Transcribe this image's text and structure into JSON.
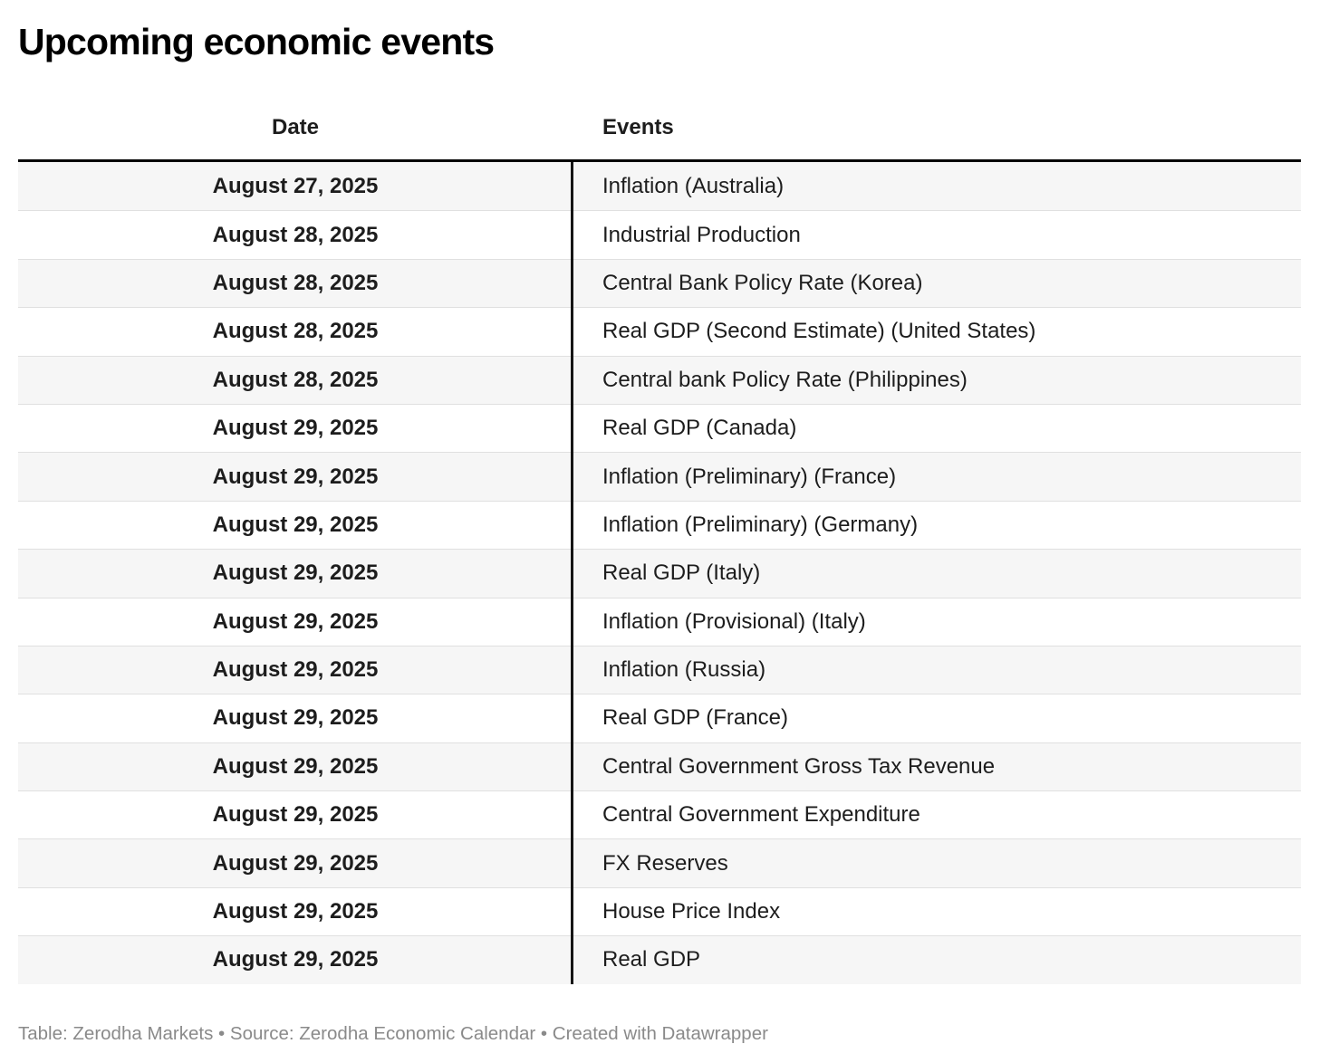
{
  "title": "Upcoming economic events",
  "table": {
    "columns": [
      {
        "label": "Date"
      },
      {
        "label": "Events"
      }
    ],
    "rows": [
      {
        "date": "August 27, 2025",
        "event": "Inflation (Australia)"
      },
      {
        "date": "August 28, 2025",
        "event": "Industrial Production"
      },
      {
        "date": "August 28, 2025",
        "event": "Central Bank Policy Rate (Korea)"
      },
      {
        "date": "August 28, 2025",
        "event": "Real GDP (Second Estimate) (United States)"
      },
      {
        "date": "August 28, 2025",
        "event": "Central bank Policy Rate (Philippines)"
      },
      {
        "date": "August 29, 2025",
        "event": "Real GDP (Canada)"
      },
      {
        "date": "August 29, 2025",
        "event": "Inflation (Preliminary) (France)"
      },
      {
        "date": "August 29, 2025",
        "event": "Inflation (Preliminary) (Germany)"
      },
      {
        "date": "August 29, 2025",
        "event": "Real GDP (Italy)"
      },
      {
        "date": "August 29, 2025",
        "event": "Inflation (Provisional) (Italy)"
      },
      {
        "date": "August 29, 2025",
        "event": "Inflation (Russia)"
      },
      {
        "date": "August 29, 2025",
        "event": "Real GDP (France)"
      },
      {
        "date": "August 29, 2025",
        "event": "Central Government Gross Tax Revenue"
      },
      {
        "date": "August 29, 2025",
        "event": "Central Government Expenditure"
      },
      {
        "date": "August 29, 2025",
        "event": "FX Reserves"
      },
      {
        "date": "August 29, 2025",
        "event": "House Price Index"
      },
      {
        "date": "August 29, 2025",
        "event": "Real GDP"
      }
    ]
  },
  "footer": {
    "text": "Table: Zerodha Markets • Source: Zerodha Economic Calendar • Created with Datawrapper"
  },
  "colors": {
    "text": "#1d1d1d",
    "header_border": "#000000",
    "column_divider": "#161616",
    "row_divider": "#e0e0e0",
    "row_alt_bg": "#f6f6f6",
    "footer_text": "#8a8a8a"
  },
  "chart_data": {
    "type": "table",
    "title": "Upcoming economic events",
    "columns": [
      "Date",
      "Events"
    ],
    "rows": [
      [
        "August 27, 2025",
        "Inflation (Australia)"
      ],
      [
        "August 28, 2025",
        "Industrial Production"
      ],
      [
        "August 28, 2025",
        "Central Bank Policy Rate (Korea)"
      ],
      [
        "August 28, 2025",
        "Real GDP (Second Estimate) (United States)"
      ],
      [
        "August 28, 2025",
        "Central bank Policy Rate (Philippines)"
      ],
      [
        "August 29, 2025",
        "Real GDP (Canada)"
      ],
      [
        "August 29, 2025",
        "Inflation (Preliminary) (France)"
      ],
      [
        "August 29, 2025",
        "Inflation (Preliminary) (Germany)"
      ],
      [
        "August 29, 2025",
        "Real GDP (Italy)"
      ],
      [
        "August 29, 2025",
        "Inflation (Provisional) (Italy)"
      ],
      [
        "August 29, 2025",
        "Inflation (Russia)"
      ],
      [
        "August 29, 2025",
        "Real GDP (France)"
      ],
      [
        "August 29, 2025",
        "Central Government Gross Tax Revenue"
      ],
      [
        "August 29, 2025",
        "Central Government Expenditure"
      ],
      [
        "August 29, 2025",
        "FX Reserves"
      ],
      [
        "August 29, 2025",
        "House Price Index"
      ],
      [
        "August 29, 2025",
        "Real GDP"
      ]
    ],
    "layout": {
      "striped_rows": true,
      "header_rule": "thick-black",
      "column_divider": "black-vertical"
    }
  }
}
